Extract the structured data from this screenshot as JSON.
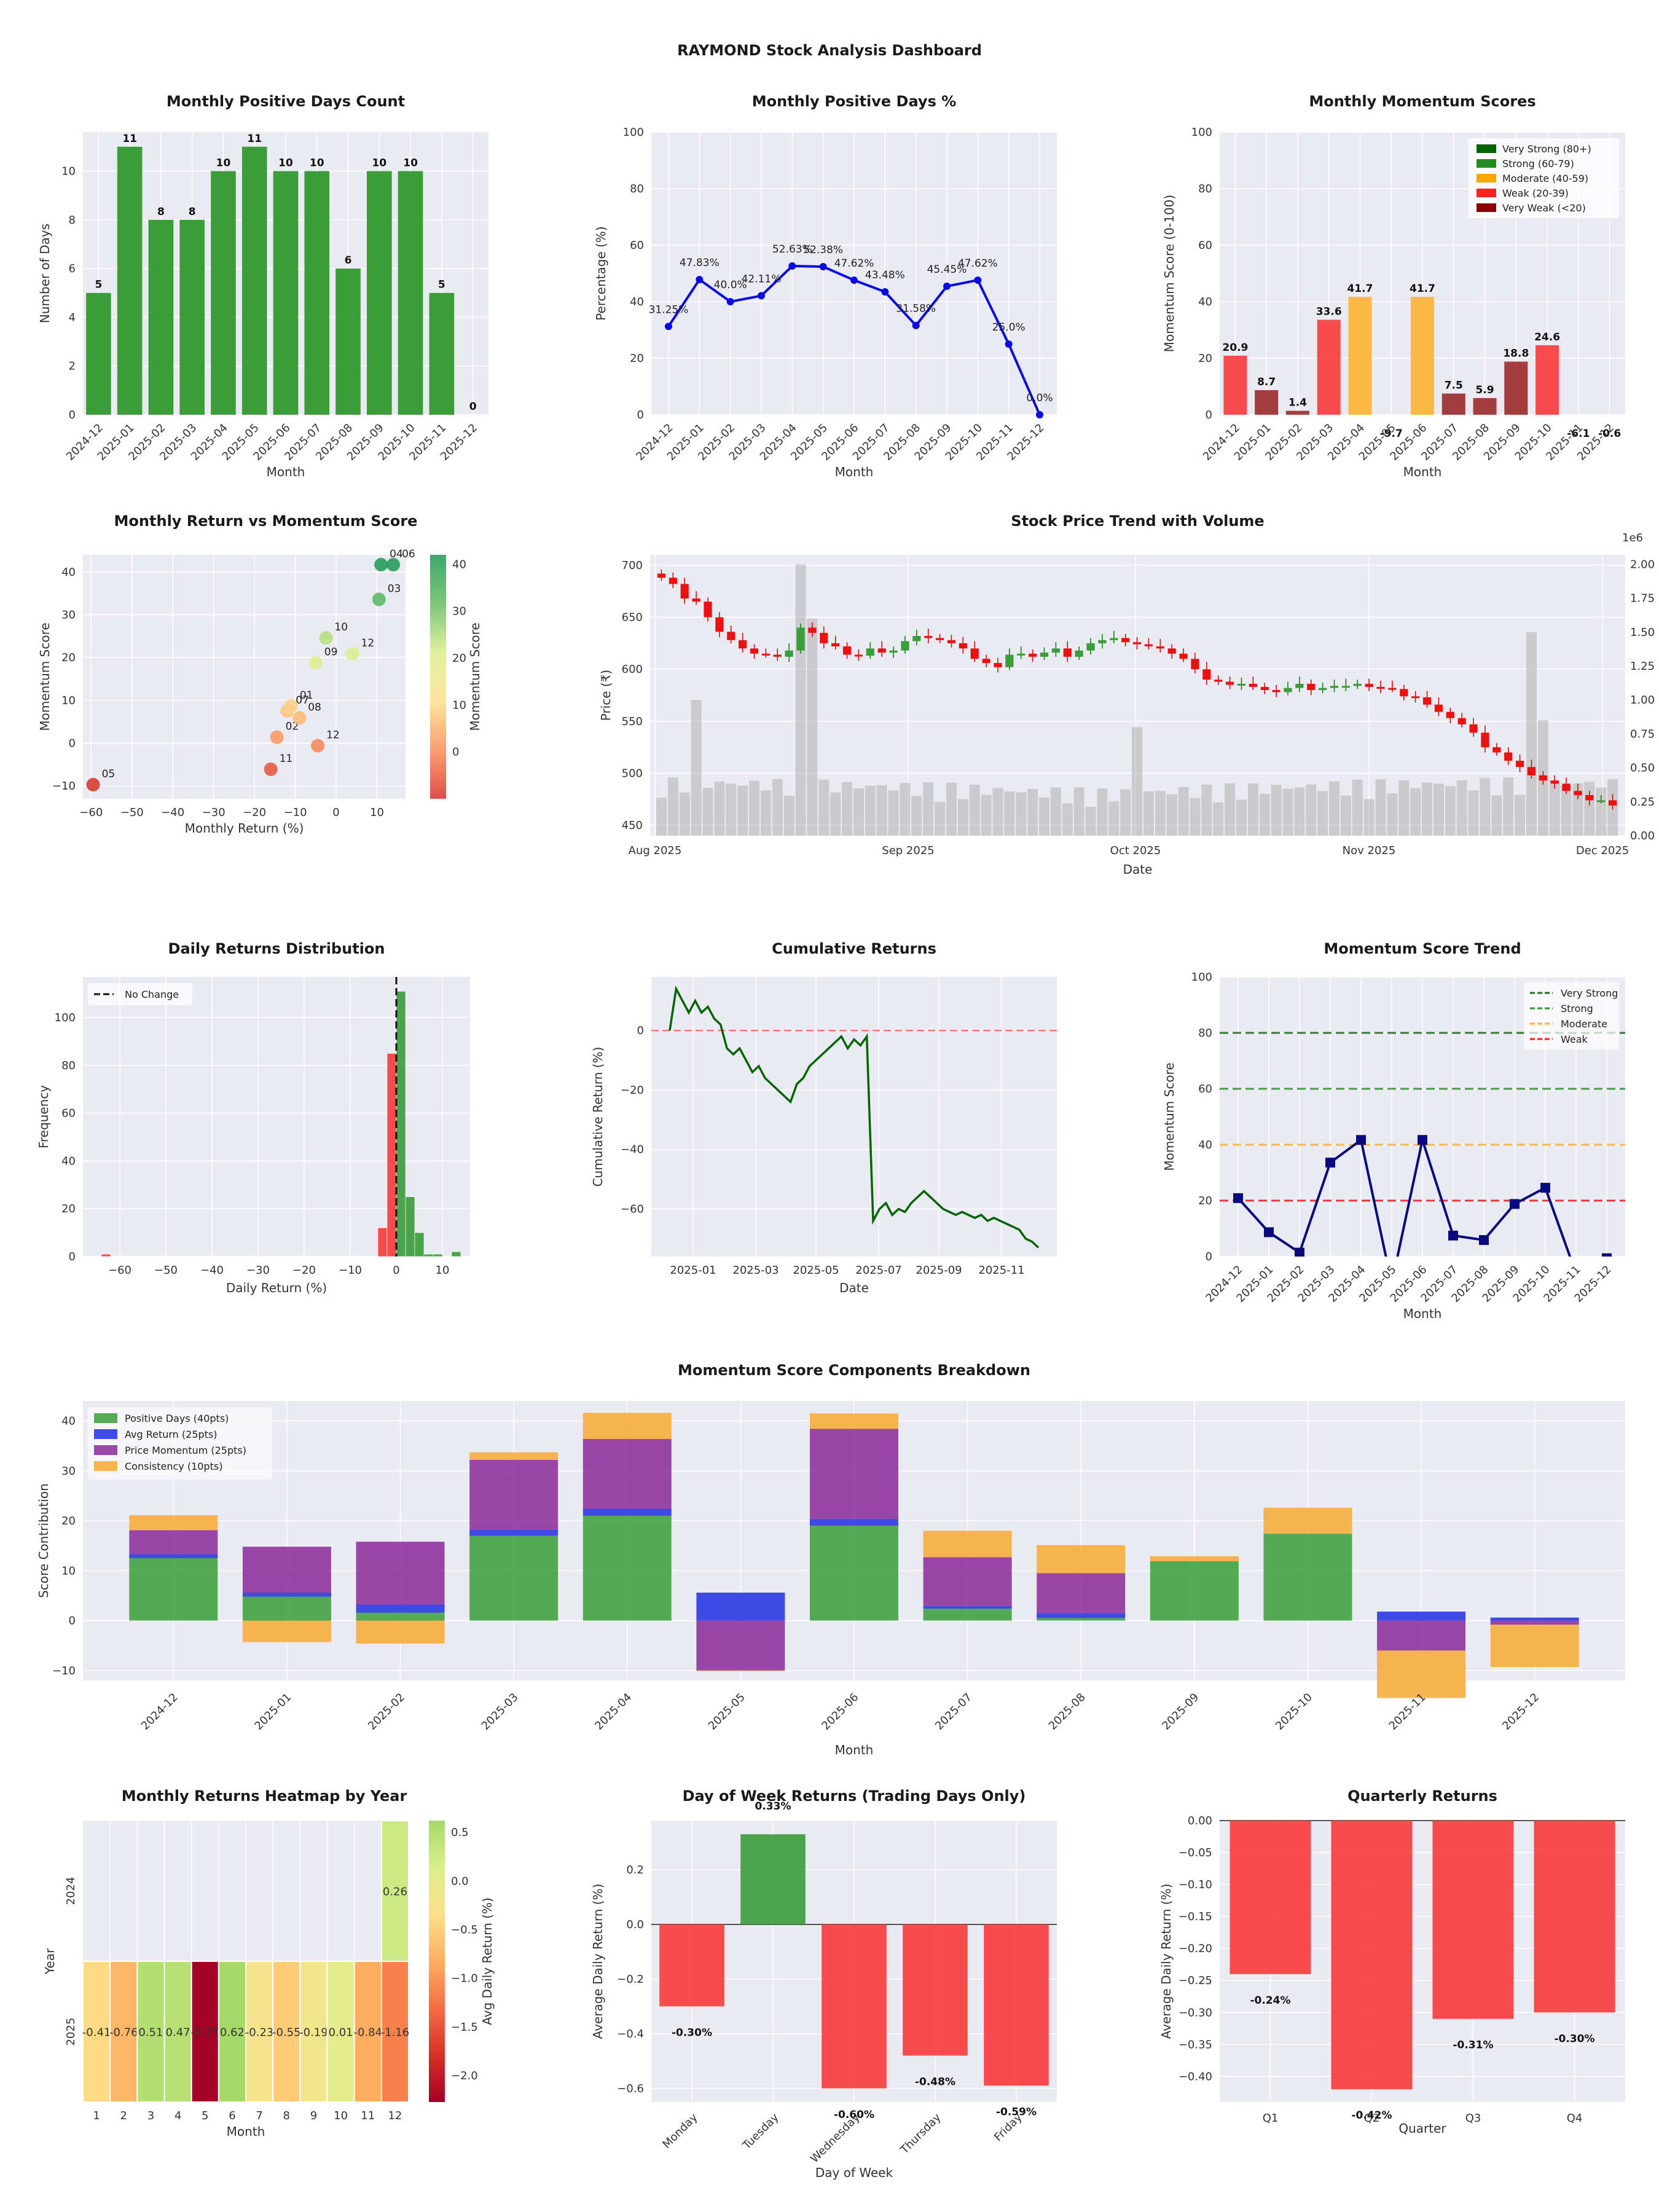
{
  "dashboard": {
    "title": "RAYMOND Stock Analysis Dashboard"
  },
  "colors": {
    "green": "#3a9d3a",
    "red": "#f83a3a",
    "blue": "#0a0ae6",
    "darkred": "#9b2a2a",
    "orange": "#fdb232",
    "panel_bg": "#eaeaf2",
    "purple": "#9030a0",
    "navy": "#0a0a80"
  },
  "chart_data": [
    {
      "id": "positive_days_count",
      "type": "bar",
      "title": "Monthly Positive Days Count",
      "xlabel": "Month",
      "ylabel": "Number of Days",
      "categories": [
        "2024-12",
        "2025-01",
        "2025-02",
        "2025-03",
        "2025-04",
        "2025-05",
        "2025-06",
        "2025-07",
        "2025-08",
        "2025-09",
        "2025-10",
        "2025-11",
        "2025-12"
      ],
      "values": [
        5,
        11,
        8,
        8,
        10,
        11,
        10,
        10,
        6,
        10,
        10,
        5,
        0
      ],
      "value_labels": [
        "5",
        "11",
        "8",
        "8",
        "10",
        "11",
        "10",
        "10",
        "6",
        "10",
        "10",
        "5",
        "0"
      ],
      "ylim": [
        0,
        11.6
      ],
      "yticks": [
        "0",
        "2",
        "4",
        "6",
        "8",
        "10"
      ]
    },
    {
      "id": "positive_days_pct",
      "type": "line",
      "title": "Monthly Positive Days %",
      "xlabel": "Month",
      "ylabel": "Percentage (%)",
      "categories": [
        "2024-12",
        "2025-01",
        "2025-02",
        "2025-03",
        "2025-04",
        "2025-05",
        "2025-06",
        "2025-07",
        "2025-08",
        "2025-09",
        "2025-10",
        "2025-11",
        "2025-12"
      ],
      "values": [
        31.25,
        47.83,
        40.0,
        42.11,
        52.63,
        52.38,
        47.62,
        43.48,
        31.58,
        45.45,
        47.62,
        25.0,
        0.0
      ],
      "value_labels": [
        "31.25%",
        "47.83%",
        "40.0%",
        "42.11%",
        "52.63%",
        "52.38%",
        "47.62%",
        "43.48%",
        "31.58%",
        "45.45%",
        "47.62%",
        "25.0%",
        "0.0%"
      ],
      "ylim": [
        0,
        100
      ],
      "yticks": [
        "0",
        "20",
        "40",
        "60",
        "80",
        "100"
      ]
    },
    {
      "id": "momentum_scores",
      "type": "bar",
      "title": "Monthly Momentum Scores",
      "xlabel": "Month",
      "ylabel": "Momentum Score (0-100)",
      "categories": [
        "2024-12",
        "2025-01",
        "2025-02",
        "2025-03",
        "2025-04",
        "2025-05",
        "2025-06",
        "2025-07",
        "2025-08",
        "2025-09",
        "2025-10",
        "2025-11",
        "2025-12"
      ],
      "values": [
        20.9,
        8.7,
        1.4,
        33.6,
        41.7,
        -9.7,
        41.7,
        7.5,
        5.9,
        18.8,
        24.6,
        -6.1,
        -0.6
      ],
      "value_labels": [
        "20.9",
        "8.7",
        "1.4",
        "33.6",
        "41.7",
        "-9.7",
        "41.7",
        "7.5",
        "5.9",
        "18.8",
        "24.6",
        "-6.1",
        "-0.6"
      ],
      "ylim": [
        0,
        100
      ],
      "yticks": [
        "0",
        "20",
        "40",
        "60",
        "80",
        "100"
      ],
      "legend": [
        "Very Strong (80+)",
        "Strong (60-79)",
        "Moderate (40-59)",
        "Weak (20-39)",
        "Very Weak (<20)"
      ],
      "legend_colors": [
        "#006400",
        "#228b22",
        "#ffa500",
        "#ff2020",
        "#8b0000"
      ]
    },
    {
      "id": "return_vs_momentum",
      "type": "scatter",
      "title": "Monthly Return vs Momentum Score",
      "xlabel": "Monthly Return (%)",
      "ylabel": "Momentum Score",
      "colorbar_label": "Momentum Score",
      "colorbar_ticks": [
        "0",
        "10",
        "20",
        "30",
        "40"
      ],
      "points": [
        {
          "label": "05",
          "x": -59.5,
          "y": -9.7
        },
        {
          "label": "11",
          "x": -16.0,
          "y": -6.1
        },
        {
          "label": "12",
          "x": -4.5,
          "y": -0.6
        },
        {
          "label": "02",
          "x": -14.5,
          "y": 1.4
        },
        {
          "label": "08",
          "x": -9.0,
          "y": 5.9
        },
        {
          "label": "07",
          "x": -12.0,
          "y": 7.5
        },
        {
          "label": "01",
          "x": -11.0,
          "y": 8.7
        },
        {
          "label": "09",
          "x": -5.0,
          "y": 18.8
        },
        {
          "label": "12",
          "x": 4.0,
          "y": 20.9
        },
        {
          "label": "10",
          "x": -2.5,
          "y": 24.6
        },
        {
          "label": "03",
          "x": 10.5,
          "y": 33.6
        },
        {
          "label": "04",
          "x": 11.0,
          "y": 41.7
        },
        {
          "label": "06",
          "x": 14.0,
          "y": 41.7
        }
      ],
      "xlim": [
        -62,
        17
      ],
      "ylim": [
        -13,
        44
      ],
      "xticks": [
        "−60",
        "−50",
        "−40",
        "−30",
        "−20",
        "−10",
        "0",
        "10"
      ],
      "yticks": [
        "−10",
        "0",
        "10",
        "20",
        "30",
        "40"
      ]
    },
    {
      "id": "price_volume",
      "type": "candlestick",
      "title": "Stock Price Trend with Volume",
      "xlabel": "Date",
      "ylabel": "Price (₹)",
      "xticks": [
        "Aug 2025",
        "Sep 2025",
        "Oct 2025",
        "Nov 2025",
        "Dec 2025"
      ],
      "yticks": [
        "450",
        "500",
        "550",
        "600",
        "650",
        "700"
      ],
      "vol_ticks": [
        "0.00",
        "0.25",
        "0.50",
        "0.75",
        "1.00",
        "1.25",
        "1.50",
        "1.75",
        "2.00"
      ],
      "vol_scale_label": "1e6",
      "closes": [
        688,
        682,
        668,
        665,
        650,
        636,
        628,
        620,
        615,
        614,
        612,
        618,
        640,
        635,
        625,
        622,
        614,
        613,
        620,
        616,
        618,
        627,
        632,
        630,
        628,
        625,
        620,
        610,
        606,
        602,
        614,
        615,
        612,
        616,
        620,
        612,
        618,
        625,
        628,
        630,
        626,
        624,
        622,
        620,
        615,
        610,
        600,
        590,
        588,
        585,
        586,
        583,
        580,
        578,
        582,
        586,
        580,
        582,
        584,
        584,
        586,
        583,
        582,
        581,
        574,
        573,
        566,
        559,
        553,
        547,
        539,
        525,
        520,
        512,
        506,
        498,
        493,
        490,
        483,
        479,
        474,
        474,
        469
      ]
    },
    {
      "id": "daily_returns_dist",
      "type": "histogram",
      "title": "Daily Returns Distribution",
      "xlabel": "Daily Return (%)",
      "ylabel": "Frequency",
      "legend": [
        "No Change"
      ],
      "bins_start": [
        -64,
        -4,
        -2,
        0,
        2,
        4,
        6,
        8,
        12
      ],
      "bins_width": 2,
      "counts": [
        1,
        12,
        85,
        111,
        25,
        10,
        1,
        1,
        2
      ],
      "xticks": [
        "−60",
        "−50",
        "−40",
        "−30",
        "−20",
        "−10",
        "0",
        "10"
      ],
      "yticks": [
        "0",
        "20",
        "40",
        "60",
        "80",
        "100"
      ]
    },
    {
      "id": "cumulative_returns",
      "type": "line",
      "title": "Cumulative Returns",
      "xlabel": "Date",
      "ylabel": "Cumulative Return (%)",
      "xticks": [
        "2025-01",
        "2025-03",
        "2025-05",
        "2025-07",
        "2025-09",
        "2025-11"
      ],
      "yticks": [
        "−60",
        "−40",
        "−20",
        "0"
      ],
      "values": [
        0,
        14,
        10,
        6,
        10,
        6,
        8,
        4,
        2,
        -6,
        -8,
        -6,
        -10,
        -14,
        -12,
        -16,
        -18,
        -20,
        -22,
        -24,
        -18,
        -16,
        -12,
        -10,
        -8,
        -6,
        -4,
        -2,
        -6,
        -3,
        -5,
        -2,
        -64,
        -60,
        -58,
        -62,
        -60,
        -61,
        -58,
        -56,
        -54,
        -56,
        -58,
        -60,
        -61,
        -62,
        -61,
        -62,
        -63,
        -62,
        -64,
        -63,
        -64,
        -65,
        -66,
        -67,
        -70,
        -71,
        -73
      ]
    },
    {
      "id": "momentum_trend",
      "type": "line",
      "title": "Momentum Score Trend",
      "xlabel": "Month",
      "ylabel": "Momentum Score",
      "categories": [
        "2024-12",
        "2025-01",
        "2025-02",
        "2025-03",
        "2025-04",
        "2025-05",
        "2025-06",
        "2025-07",
        "2025-08",
        "2025-09",
        "2025-10",
        "2025-11",
        "2025-12"
      ],
      "values": [
        20.9,
        8.7,
        1.4,
        33.6,
        41.7,
        -9.7,
        41.7,
        7.5,
        5.9,
        18.8,
        24.6,
        -6.1,
        -0.6
      ],
      "ylim": [
        0,
        100
      ],
      "yticks": [
        "0",
        "20",
        "40",
        "60",
        "80",
        "100"
      ],
      "legend": [
        "Very Strong",
        "Strong",
        "Moderate",
        "Weak"
      ]
    },
    {
      "id": "components_breakdown",
      "type": "bar",
      "title": "Momentum Score Components Breakdown",
      "xlabel": "Month",
      "ylabel": "Score Contribution",
      "categories": [
        "2024-12",
        "2025-01",
        "2025-02",
        "2025-03",
        "2025-04",
        "2025-05",
        "2025-06",
        "2025-07",
        "2025-08",
        "2025-09",
        "2025-10",
        "2025-11",
        "2025-12"
      ],
      "series": [
        {
          "name": "Positive Days (40pts)",
          "values": [
            12.5,
            4.8,
            1.6,
            17.0,
            21.0,
            0,
            19.0,
            2.4,
            0.5,
            11.9,
            17.4,
            0,
            0
          ]
        },
        {
          "name": "Avg Return (25pts)",
          "values": [
            0.8,
            0.8,
            1.6,
            1.2,
            1.4,
            5.6,
            1.4,
            0.5,
            1.0,
            0,
            0,
            1.8,
            0.6
          ]
        },
        {
          "name": "Price Momentum (25pts)",
          "values": [
            4.8,
            9.2,
            12.6,
            14.0,
            14.0,
            -10.0,
            18.0,
            9.8,
            8.0,
            0,
            0,
            -6.0,
            -0.8
          ]
        },
        {
          "name": "Consistency (10pts)",
          "values": [
            3.0,
            -4.3,
            -4.6,
            1.5,
            5.2,
            -0.1,
            3.1,
            5.3,
            5.6,
            1.0,
            5.2,
            -9.5,
            -8.5
          ]
        }
      ],
      "ylim": [
        -12,
        44
      ],
      "yticks": [
        "−10",
        "0",
        "10",
        "20",
        "30",
        "40"
      ]
    },
    {
      "id": "monthly_heatmap",
      "type": "heatmap",
      "title": "Monthly Returns Heatmap by Year",
      "xlabel": "Month",
      "ylabel": "Year",
      "years": [
        "2024",
        "2025"
      ],
      "months": [
        "1",
        "2",
        "3",
        "4",
        "5",
        "6",
        "7",
        "8",
        "9",
        "10",
        "11",
        "12"
      ],
      "values": [
        [
          null,
          null,
          null,
          null,
          null,
          null,
          null,
          null,
          null,
          null,
          null,
          0.26
        ],
        [
          -0.41,
          -0.76,
          0.51,
          0.47,
          -2.27,
          0.62,
          -0.23,
          -0.55,
          -0.19,
          0.01,
          -0.84,
          -1.16
        ]
      ],
      "cell_labels": [
        [
          "",
          "",
          "",
          "",
          "",
          "",
          "",
          "",
          "",
          "",
          "",
          "0.26"
        ],
        [
          "-0.41",
          "-0.76",
          "0.51",
          "0.47",
          "-2.27",
          "0.62",
          "-0.23",
          "-0.55",
          "-0.19",
          "0.01",
          "-0.84",
          "-1.16"
        ]
      ],
      "colorbar_label": "Avg Daily Return (%)",
      "colorbar_ticks": [
        "0.5",
        "0.0",
        "−0.5",
        "−1.0",
        "−1.5",
        "−2.0"
      ],
      "range": [
        -2.27,
        0.62
      ]
    },
    {
      "id": "day_of_week",
      "type": "bar",
      "title": "Day of Week Returns (Trading Days Only)",
      "xlabel": "Day of Week",
      "ylabel": "Average Daily Return (%)",
      "categories": [
        "Monday",
        "Tuesday",
        "Wednesday",
        "Thursday",
        "Friday"
      ],
      "values": [
        -0.3,
        0.33,
        -0.6,
        -0.48,
        -0.59
      ],
      "value_labels": [
        "-0.30%",
        "0.33%",
        "-0.60%",
        "-0.48%",
        "-0.59%"
      ],
      "ylim": [
        -0.65,
        0.38
      ],
      "yticks": [
        "0.2",
        "0.0",
        "−0.2",
        "−0.4",
        "−0.6"
      ]
    },
    {
      "id": "quarterly_returns",
      "type": "bar",
      "title": "Quarterly Returns",
      "xlabel": "Quarter",
      "ylabel": "Average Daily Return (%)",
      "categories": [
        "Q1",
        "Q2",
        "Q3",
        "Q4"
      ],
      "values": [
        -0.24,
        -0.42,
        -0.31,
        -0.3
      ],
      "value_labels": [
        "-0.24%",
        "-0.42%",
        "-0.31%",
        "-0.30%"
      ],
      "ylim": [
        -0.44,
        0
      ],
      "yticks": [
        "0.00",
        "−0.05",
        "−0.10",
        "−0.15",
        "−0.20",
        "−0.25",
        "−0.30",
        "−0.35",
        "−0.40"
      ]
    }
  ]
}
